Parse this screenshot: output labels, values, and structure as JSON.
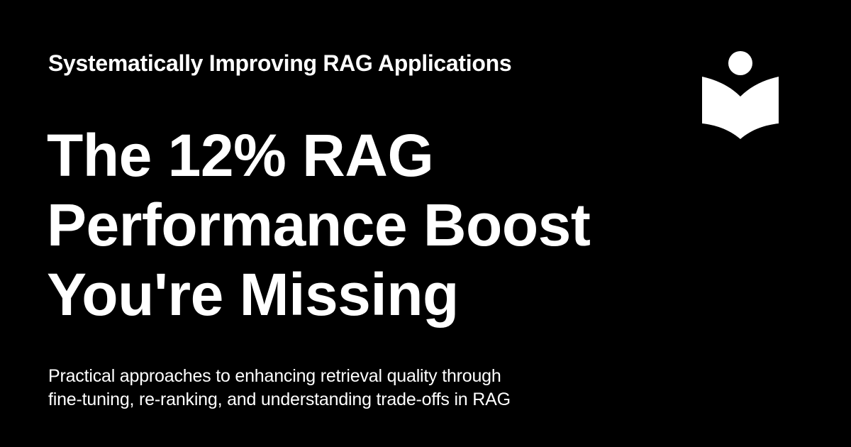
{
  "card": {
    "series_title": "Systematically Improving RAG Applications",
    "headline_lines": [
      "The 12% RAG",
      "Performance Boost",
      "You're Missing"
    ],
    "subtitle_lines": [
      "Practical approaches to enhancing retrieval quality through",
      "fine-tuning, re-ranking, and understanding trade-offs in RAG"
    ],
    "logo_icon": "reader-book-icon",
    "colors": {
      "background": "#000000",
      "text": "#ffffff"
    }
  }
}
